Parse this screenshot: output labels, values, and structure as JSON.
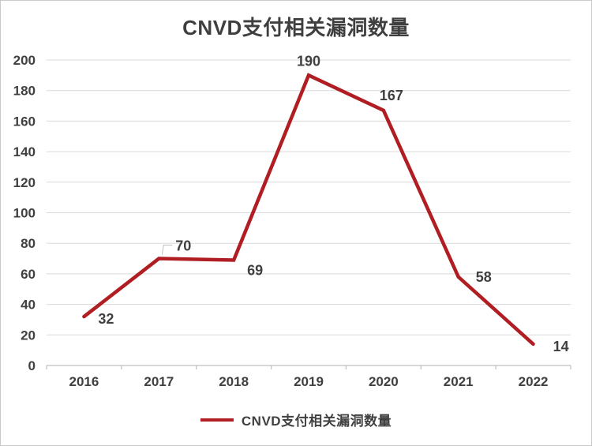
{
  "chart_data": {
    "type": "line",
    "title": "CNVD支付相关漏洞数量",
    "categories": [
      "2016",
      "2017",
      "2018",
      "2019",
      "2020",
      "2021",
      "2022"
    ],
    "series": [
      {
        "name": "CNVD支付相关漏洞数量",
        "values": [
          32,
          70,
          69,
          190,
          167,
          58,
          14
        ],
        "color": "#b01e23"
      }
    ],
    "xlabel": "",
    "ylabel": "",
    "ylim": [
      0,
      200
    ],
    "ytick_step": 20,
    "grid": true,
    "data_labels_shown": true,
    "legend_position": "bottom"
  },
  "colors": {
    "line": "#b01e23",
    "gridline": "#dadada",
    "axis": "#bfbfbf",
    "text": "#404040",
    "leader_line": "#bfbfbf",
    "frame_border": "#c9c9c9",
    "background": "#ffffff"
  }
}
